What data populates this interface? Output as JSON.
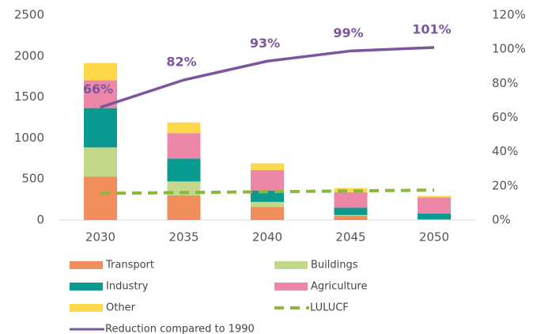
{
  "chart_data": {
    "type": "bar",
    "stacked": true,
    "categories": [
      "2030",
      "2035",
      "2040",
      "2045",
      "2050"
    ],
    "series": [
      {
        "name": "Transport",
        "color": "#f28e5c",
        "type": "bar",
        "values": [
          530,
          300,
          160,
          50,
          5
        ]
      },
      {
        "name": "Buildings",
        "color": "#c3d88a",
        "type": "bar",
        "values": [
          355,
          170,
          60,
          10,
          5
        ]
      },
      {
        "name": "Industry",
        "color": "#0a9a8f",
        "type": "bar",
        "values": [
          480,
          280,
          140,
          90,
          70
        ]
      },
      {
        "name": "Agriculture",
        "color": "#ec87a8",
        "type": "bar",
        "values": [
          340,
          310,
          250,
          190,
          195
        ]
      },
      {
        "name": "Other",
        "color": "#fdd94a",
        "type": "bar",
        "values": [
          210,
          130,
          80,
          50,
          20
        ]
      },
      {
        "name": "LULUCF",
        "color": "#8ab83b",
        "type": "line",
        "dashed": true,
        "values": [
          325,
          335,
          345,
          355,
          365
        ]
      },
      {
        "name": "Reduction compared to 1990",
        "color": "#7b559f",
        "type": "line",
        "axis": "y2",
        "values": [
          66,
          82,
          93,
          99,
          101
        ],
        "value_labels": [
          "66%",
          "82%",
          "93%",
          "99%",
          "101%"
        ]
      }
    ],
    "ylim": [
      0,
      2500
    ],
    "yticks": [
      0,
      500,
      1000,
      1500,
      2000,
      2500
    ],
    "y2lim": [
      0,
      120
    ],
    "y2ticks": [
      {
        "value": 0,
        "label": "0%"
      },
      {
        "value": 20,
        "label": "20%"
      },
      {
        "value": 40,
        "label": "40%"
      },
      {
        "value": 60,
        "label": "60%"
      },
      {
        "value": 80,
        "label": "80%"
      },
      {
        "value": 100,
        "label": "100%"
      },
      {
        "value": 120,
        "label": "120%"
      }
    ],
    "grid": false
  }
}
